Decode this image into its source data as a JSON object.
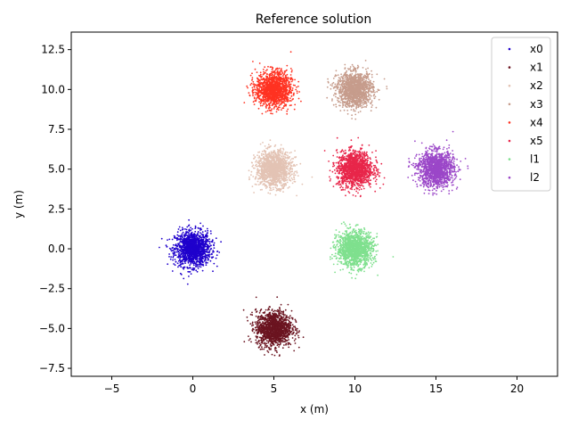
{
  "chart_data": {
    "type": "scatter",
    "title": "Reference solution",
    "xlabel": "x (m)",
    "ylabel": "y (m)",
    "xlim": [
      -7.5,
      22.5
    ],
    "ylim": [
      -8.0,
      13.6
    ],
    "xticks": [
      -5,
      0,
      5,
      10,
      15,
      20
    ],
    "xtick_labels": [
      "−5",
      "0",
      "5",
      "10",
      "15",
      "20"
    ],
    "yticks": [
      -7.5,
      -5.0,
      -2.5,
      0.0,
      2.5,
      5.0,
      7.5,
      10.0,
      12.5
    ],
    "ytick_labels": [
      "−7.5",
      "−5.0",
      "−2.5",
      "0.0",
      "2.5",
      "5.0",
      "7.5",
      "10.0",
      "12.5"
    ],
    "grid": false,
    "legend_position": "top-right",
    "series": [
      {
        "name": "x0",
        "color": "#1f00cc",
        "center": [
          0,
          0
        ],
        "spread": 0.55
      },
      {
        "name": "x1",
        "color": "#6b1420",
        "center": [
          5,
          -5
        ],
        "spread": 0.55
      },
      {
        "name": "x2",
        "color": "#e3c3b4",
        "center": [
          5,
          5
        ],
        "spread": 0.55
      },
      {
        "name": "x3",
        "color": "#c69c8c",
        "center": [
          10,
          10
        ],
        "spread": 0.55
      },
      {
        "name": "x4",
        "color": "#ff3322",
        "center": [
          5,
          10
        ],
        "spread": 0.55
      },
      {
        "name": "x5",
        "color": "#e8264a",
        "center": [
          10,
          5
        ],
        "spread": 0.55
      },
      {
        "name": "l1",
        "color": "#7fe08e",
        "center": [
          10,
          0
        ],
        "spread": 0.55
      },
      {
        "name": "l2",
        "color": "#9b47c8",
        "center": [
          15,
          5
        ],
        "spread": 0.55
      }
    ]
  }
}
